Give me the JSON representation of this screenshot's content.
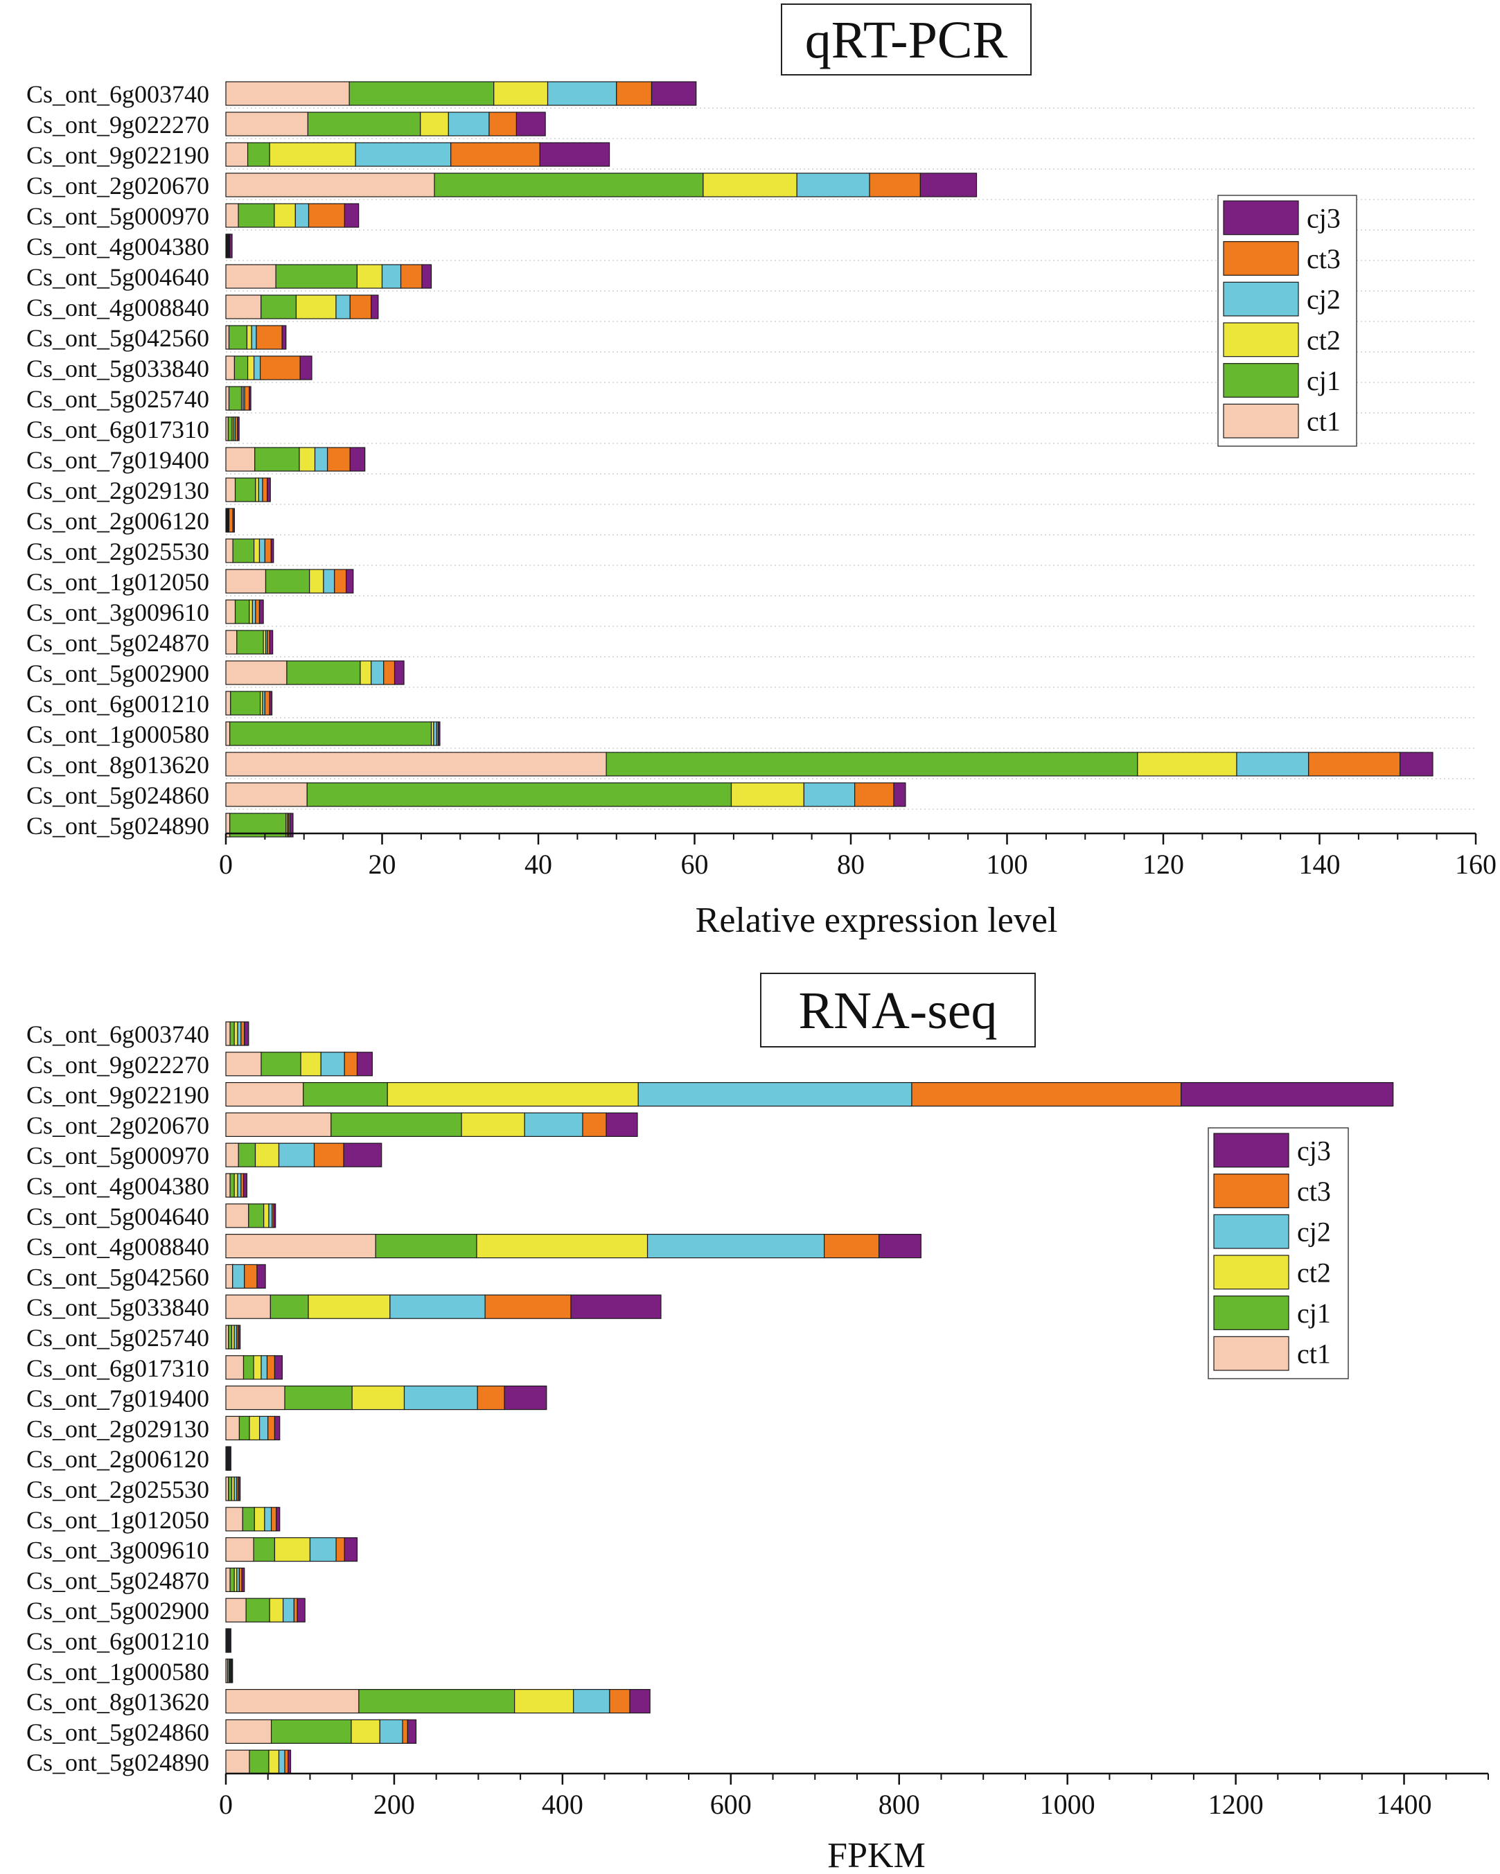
{
  "colors": {
    "ct1": "#F7CBB2",
    "cj1": "#66B82E",
    "ct2": "#EDE63A",
    "cj2": "#6CC8DA",
    "ct3": "#F07B1E",
    "cj3": "#7B1F80",
    "gene_label": "#222222",
    "axis": "#111111"
  },
  "chart_data": [
    {
      "type": "bar",
      "orientation": "horizontal",
      "stacked": true,
      "title": "qRT-PCR",
      "xlabel": "Relative  expression level",
      "ylabel": "",
      "xlim": [
        0,
        160
      ],
      "xticks": [
        "0",
        "20",
        "40",
        "60",
        "80",
        "100",
        "120",
        "140",
        "160"
      ],
      "legend_position": "right",
      "legend": [
        "cj3",
        "ct3",
        "cj2",
        "ct2",
        "cj1",
        "ct1"
      ],
      "categories": [
        "Cs_ont_6g003740",
        "Cs_ont_9g022270",
        "Cs_ont_9g022190",
        "Cs_ont_2g020670",
        "Cs_ont_5g000970",
        "Cs_ont_4g004380",
        "Cs_ont_5g004640",
        "Cs_ont_4g008840",
        "Cs_ont_5g042560",
        "Cs_ont_5g033840",
        "Cs_ont_5g025740",
        "Cs_ont_6g017310",
        "Cs_ont_7g019400",
        "Cs_ont_2g029130",
        "Cs_ont_2g006120",
        "Cs_ont_2g025530",
        "Cs_ont_1g012050",
        "Cs_ont_3g009610",
        "Cs_ont_5g024870",
        "Cs_ont_5g002900",
        "Cs_ont_6g001210",
        "Cs_ont_1g000580",
        "Cs_ont_8g013620",
        "Cs_ont_5g024860",
        "Cs_ont_5g024890"
      ],
      "series": [
        {
          "name": "ct1",
          "values": [
            15.8,
            10.5,
            2.8,
            26.7,
            1.6,
            0.1,
            6.4,
            4.5,
            0.4,
            1.1,
            0.4,
            0.3,
            3.7,
            1.2,
            0.1,
            0.9,
            5.1,
            1.2,
            1.4,
            7.8,
            0.6,
            0.5,
            48.7,
            10.4,
            0.5
          ]
        },
        {
          "name": "cj1",
          "values": [
            18.5,
            14.4,
            2.8,
            34.4,
            4.6,
            0.1,
            10.4,
            4.5,
            2.3,
            1.7,
            1.6,
            0.5,
            5.7,
            2.6,
            0.1,
            2.7,
            5.6,
            1.8,
            3.4,
            9.4,
            3.8,
            25.8,
            68.0,
            54.3,
            7.2
          ]
        },
        {
          "name": "ct2",
          "values": [
            6.9,
            3.6,
            11.0,
            12.0,
            2.7,
            0.1,
            3.2,
            5.1,
            0.6,
            0.8,
            0.2,
            0.2,
            2.0,
            0.4,
            0.1,
            0.7,
            1.8,
            0.4,
            0.3,
            1.4,
            0.3,
            0.3,
            12.7,
            9.3,
            0.2
          ]
        },
        {
          "name": "cj2",
          "values": [
            8.8,
            5.2,
            12.2,
            9.3,
            1.7,
            0.1,
            2.4,
            1.8,
            0.6,
            0.8,
            0.2,
            0.2,
            1.6,
            0.5,
            0.1,
            0.7,
            1.4,
            0.4,
            0.2,
            1.6,
            0.3,
            0.4,
            9.2,
            6.5,
            0.1
          ]
        },
        {
          "name": "ct3",
          "values": [
            4.5,
            3.5,
            11.4,
            6.5,
            4.6,
            0.1,
            2.7,
            2.7,
            3.3,
            5.1,
            0.6,
            0.3,
            2.9,
            0.6,
            0.5,
            0.8,
            1.5,
            0.5,
            0.3,
            1.4,
            0.6,
            0.2,
            11.7,
            5.0,
            0.2
          ]
        },
        {
          "name": "cj3",
          "values": [
            5.7,
            3.7,
            8.9,
            7.2,
            1.8,
            0.3,
            1.2,
            0.9,
            0.5,
            1.5,
            0.2,
            0.2,
            1.9,
            0.4,
            0.2,
            0.3,
            0.9,
            0.5,
            0.4,
            1.2,
            0.3,
            0.2,
            4.2,
            1.5,
            0.4
          ]
        }
      ]
    },
    {
      "type": "bar",
      "orientation": "horizontal",
      "stacked": true,
      "title": "RNA-seq",
      "xlabel": "FPKM",
      "ylabel": "",
      "xlim": [
        0,
        1500
      ],
      "xticks": [
        "0",
        "200",
        "400",
        "600",
        "800",
        "1000",
        "1200",
        "1400"
      ],
      "legend_position": "right",
      "legend": [
        "cj3",
        "ct3",
        "cj2",
        "ct2",
        "cj1",
        "ct1"
      ],
      "categories": [
        "Cs_ont_6g003740",
        "Cs_ont_9g022270",
        "Cs_ont_9g022190",
        "Cs_ont_2g020670",
        "Cs_ont_5g000970",
        "Cs_ont_4g004380",
        "Cs_ont_5g004640",
        "Cs_ont_4g008840",
        "Cs_ont_5g042560",
        "Cs_ont_5g033840",
        "Cs_ont_5g025740",
        "Cs_ont_6g017310",
        "Cs_ont_7g019400",
        "Cs_ont_2g029130",
        "Cs_ont_2g006120",
        "Cs_ont_2g025530",
        "Cs_ont_1g012050",
        "Cs_ont_3g009610",
        "Cs_ont_5g024870",
        "Cs_ont_5g002900",
        "Cs_ont_6g001210",
        "Cs_ont_1g000580",
        "Cs_ont_8g013620",
        "Cs_ont_5g024860",
        "Cs_ont_5g024890"
      ],
      "series": [
        {
          "name": "ct1",
          "values": [
            5,
            42,
            92,
            125,
            15,
            5,
            27,
            178,
            8,
            53,
            3,
            21,
            70,
            16,
            1,
            3,
            20,
            33,
            5,
            24,
            1,
            2,
            158,
            54,
            28
          ]
        },
        {
          "name": "cj1",
          "values": [
            5,
            47,
            100,
            155,
            20,
            5,
            18,
            120,
            0,
            45,
            4,
            12,
            80,
            12,
            1,
            4,
            14,
            25,
            5,
            28,
            1,
            2,
            185,
            95,
            23
          ]
        },
        {
          "name": "ct2",
          "values": [
            4,
            24,
            298,
            75,
            28,
            4,
            6,
            203,
            0,
            97,
            3,
            9,
            62,
            12,
            1,
            3,
            12,
            42,
            3,
            16,
            1,
            1,
            70,
            34,
            12
          ]
        },
        {
          "name": "cj2",
          "values": [
            4,
            28,
            325,
            69,
            42,
            4,
            4,
            210,
            14,
            113,
            3,
            7,
            87,
            10,
            1,
            3,
            8,
            31,
            3,
            13,
            1,
            1,
            43,
            27,
            7
          ]
        },
        {
          "name": "ct3",
          "values": [
            4,
            15,
            320,
            28,
            35,
            3,
            2,
            65,
            15,
            102,
            2,
            9,
            32,
            8,
            1,
            2,
            6,
            10,
            3,
            4,
            1,
            1,
            24,
            6,
            4
          ]
        },
        {
          "name": "cj3",
          "values": [
            5,
            18,
            252,
            37,
            45,
            4,
            2,
            50,
            10,
            107,
            2,
            9,
            50,
            6,
            1,
            2,
            4,
            15,
            3,
            9,
            1,
            1,
            24,
            10,
            3
          ]
        }
      ]
    }
  ]
}
